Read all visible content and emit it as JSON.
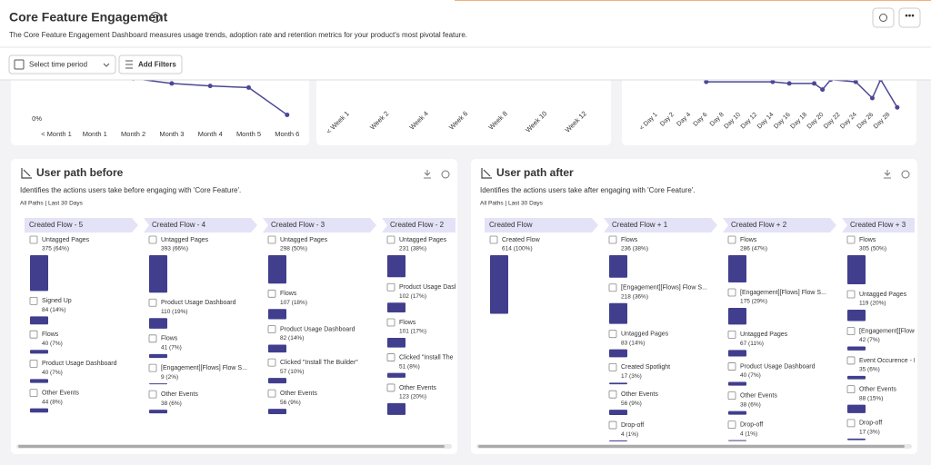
{
  "header": {
    "title": "Core Feature Engagement",
    "description": "The Core Feature Engagement Dashboard measures usage trends, adoption rate and retention metrics for your product's most pivotal feature."
  },
  "filters": {
    "time_period_placeholder": "Select time period",
    "add_filters": "Add Filters"
  },
  "chart_data": [
    {
      "type": "line",
      "categories": [
        "< Month 1",
        "Month 1",
        "Month 2",
        "Month 3",
        "Month 4",
        "Month 5",
        "Month 6"
      ],
      "values": [
        null,
        null,
        49,
        43,
        40,
        38,
        5
      ],
      "ylim": [
        0,
        100
      ],
      "yticks": [
        {
          "value": 0,
          "label": "0%"
        }
      ],
      "color": "#4b4796"
    },
    {
      "type": "line",
      "categories": [
        "< Week 1",
        "Week 2",
        "Week 4",
        "Week 6",
        "Week 8",
        "Week 10",
        "Week 12"
      ],
      "color": "#4b4796"
    },
    {
      "type": "line",
      "x": [
        6,
        14,
        16,
        19,
        20,
        21,
        24,
        26,
        27,
        29
      ],
      "values": [
        41,
        41,
        39,
        39,
        31,
        44,
        41,
        20,
        44,
        8
      ],
      "ylim": [
        0,
        100
      ],
      "xlim": [
        0,
        30
      ],
      "xticks": [
        {
          "value": 0,
          "label": "< Day 1"
        },
        {
          "value": 2,
          "label": "Day 2"
        },
        {
          "value": 4,
          "label": "Day 4"
        },
        {
          "value": 6,
          "label": "Day 6"
        },
        {
          "value": 8,
          "label": "Day 8"
        },
        {
          "value": 10,
          "label": "Day 10"
        },
        {
          "value": 12,
          "label": "Day 12"
        },
        {
          "value": 14,
          "label": "Day 14"
        },
        {
          "value": 16,
          "label": "Day 16"
        },
        {
          "value": 18,
          "label": "Day 18"
        },
        {
          "value": 20,
          "label": "Day 20"
        },
        {
          "value": 22,
          "label": "Day 22"
        },
        {
          "value": 24,
          "label": "Day 24"
        },
        {
          "value": 26,
          "label": "Day 26"
        },
        {
          "value": 28,
          "label": "Day 28"
        }
      ],
      "color": "#4b4796"
    }
  ],
  "panels": [
    {
      "title": "User path before",
      "description": "Identifies the actions users take before engaging with 'Core Feature'.",
      "scope": "All Paths | Last 30 Days",
      "columns": [
        {
          "header": "Created Flow - 5",
          "items": [
            {
              "name": "Untagged Pages",
              "count": 375,
              "label": "375 (64%)"
            },
            {
              "name": "Signed Up",
              "count": 84,
              "label": "84 (14%)"
            },
            {
              "name": "Flows",
              "count": 40,
              "label": "40 (7%)"
            },
            {
              "name": "Product Usage Dashboard",
              "count": 40,
              "label": "40 (7%)"
            },
            {
              "name": "Other Events",
              "count": 44,
              "label": "44 (8%)"
            }
          ]
        },
        {
          "header": "Created Flow - 4",
          "items": [
            {
              "name": "Untagged Pages",
              "count": 393,
              "label": "393 (66%)"
            },
            {
              "name": "Product Usage Dashboard",
              "count": 110,
              "label": "110 (19%)"
            },
            {
              "name": "Flows",
              "count": 41,
              "label": "41 (7%)"
            },
            {
              "name": "[Engagement][Flows] Flow S...",
              "count": 9,
              "label": "9 (2%)"
            },
            {
              "name": "Other Events",
              "count": 38,
              "label": "38 (6%)"
            }
          ]
        },
        {
          "header": "Created Flow - 3",
          "items": [
            {
              "name": "Untagged Pages",
              "count": 298,
              "label": "298 (50%)"
            },
            {
              "name": "Flows",
              "count": 107,
              "label": "107 (18%)"
            },
            {
              "name": "Product Usage Dashboard",
              "count": 82,
              "label": "82 (14%)"
            },
            {
              "name": "Clicked \"Install The Builder\"",
              "count": 57,
              "label": "57 (10%)"
            },
            {
              "name": "Other Events",
              "count": 56,
              "label": "56 (9%)"
            }
          ]
        },
        {
          "header": "Created Flow - 2",
          "items": [
            {
              "name": "Untagged Pages",
              "count": 231,
              "label": "231 (38%)"
            },
            {
              "name": "Product Usage Dashb",
              "count": 102,
              "label": "102 (17%)"
            },
            {
              "name": "Flows",
              "count": 101,
              "label": "101 (17%)"
            },
            {
              "name": "Clicked \"Install The Bu",
              "count": 51,
              "label": "51 (8%)"
            },
            {
              "name": "Other Events",
              "count": 123,
              "label": "123 (20%)"
            }
          ]
        }
      ]
    },
    {
      "title": "User path after",
      "description": "Identifies the actions users take after engaging with 'Core Feature'.",
      "scope": "All Paths | Last 30 Days",
      "columns": [
        {
          "header": "Created Flow",
          "items": [
            {
              "name": "Created Flow",
              "count": 614,
              "label": "614 (100%)"
            }
          ]
        },
        {
          "header": "Created Flow + 1",
          "items": [
            {
              "name": "Flows",
              "count": 236,
              "label": "236 (38%)"
            },
            {
              "name": "[Engagement][Flows] Flow S...",
              "count": 218,
              "label": "218 (36%)"
            },
            {
              "name": "Untagged Pages",
              "count": 83,
              "label": "83 (14%)"
            },
            {
              "name": "Created Spotlight",
              "count": 17,
              "label": "17 (3%)"
            },
            {
              "name": "Other Events",
              "count": 56,
              "label": "56 (9%)"
            },
            {
              "name": "Drop-off",
              "count": 4,
              "label": "4 (1%)"
            }
          ]
        },
        {
          "header": "Created Flow + 2",
          "items": [
            {
              "name": "Flows",
              "count": 286,
              "label": "286 (47%)"
            },
            {
              "name": "[Engagement][Flows] Flow S...",
              "count": 175,
              "label": "175 (29%)"
            },
            {
              "name": "Untagged Pages",
              "count": 67,
              "label": "67 (11%)"
            },
            {
              "name": "Product Usage Dashboard",
              "count": 40,
              "label": "40 (7%)"
            },
            {
              "name": "Other Events",
              "count": 38,
              "label": "38 (6%)"
            },
            {
              "name": "Drop-off",
              "count": 4,
              "label": "4 (1%)"
            }
          ]
        },
        {
          "header": "Created Flow + 3",
          "items": [
            {
              "name": "Flows",
              "count": 305,
              "label": "305 (50%)"
            },
            {
              "name": "Untagged Pages",
              "count": 119,
              "label": "119 (20%)"
            },
            {
              "name": "[Engagement][Flows]",
              "count": 42,
              "label": "42 (7%)"
            },
            {
              "name": "Event Occurence - Ho",
              "count": 35,
              "label": "35 (6%)"
            },
            {
              "name": "Other Events",
              "count": 88,
              "label": "88 (15%)"
            },
            {
              "name": "Drop-off",
              "count": 17,
              "label": "17 (3%)"
            }
          ]
        }
      ]
    }
  ]
}
